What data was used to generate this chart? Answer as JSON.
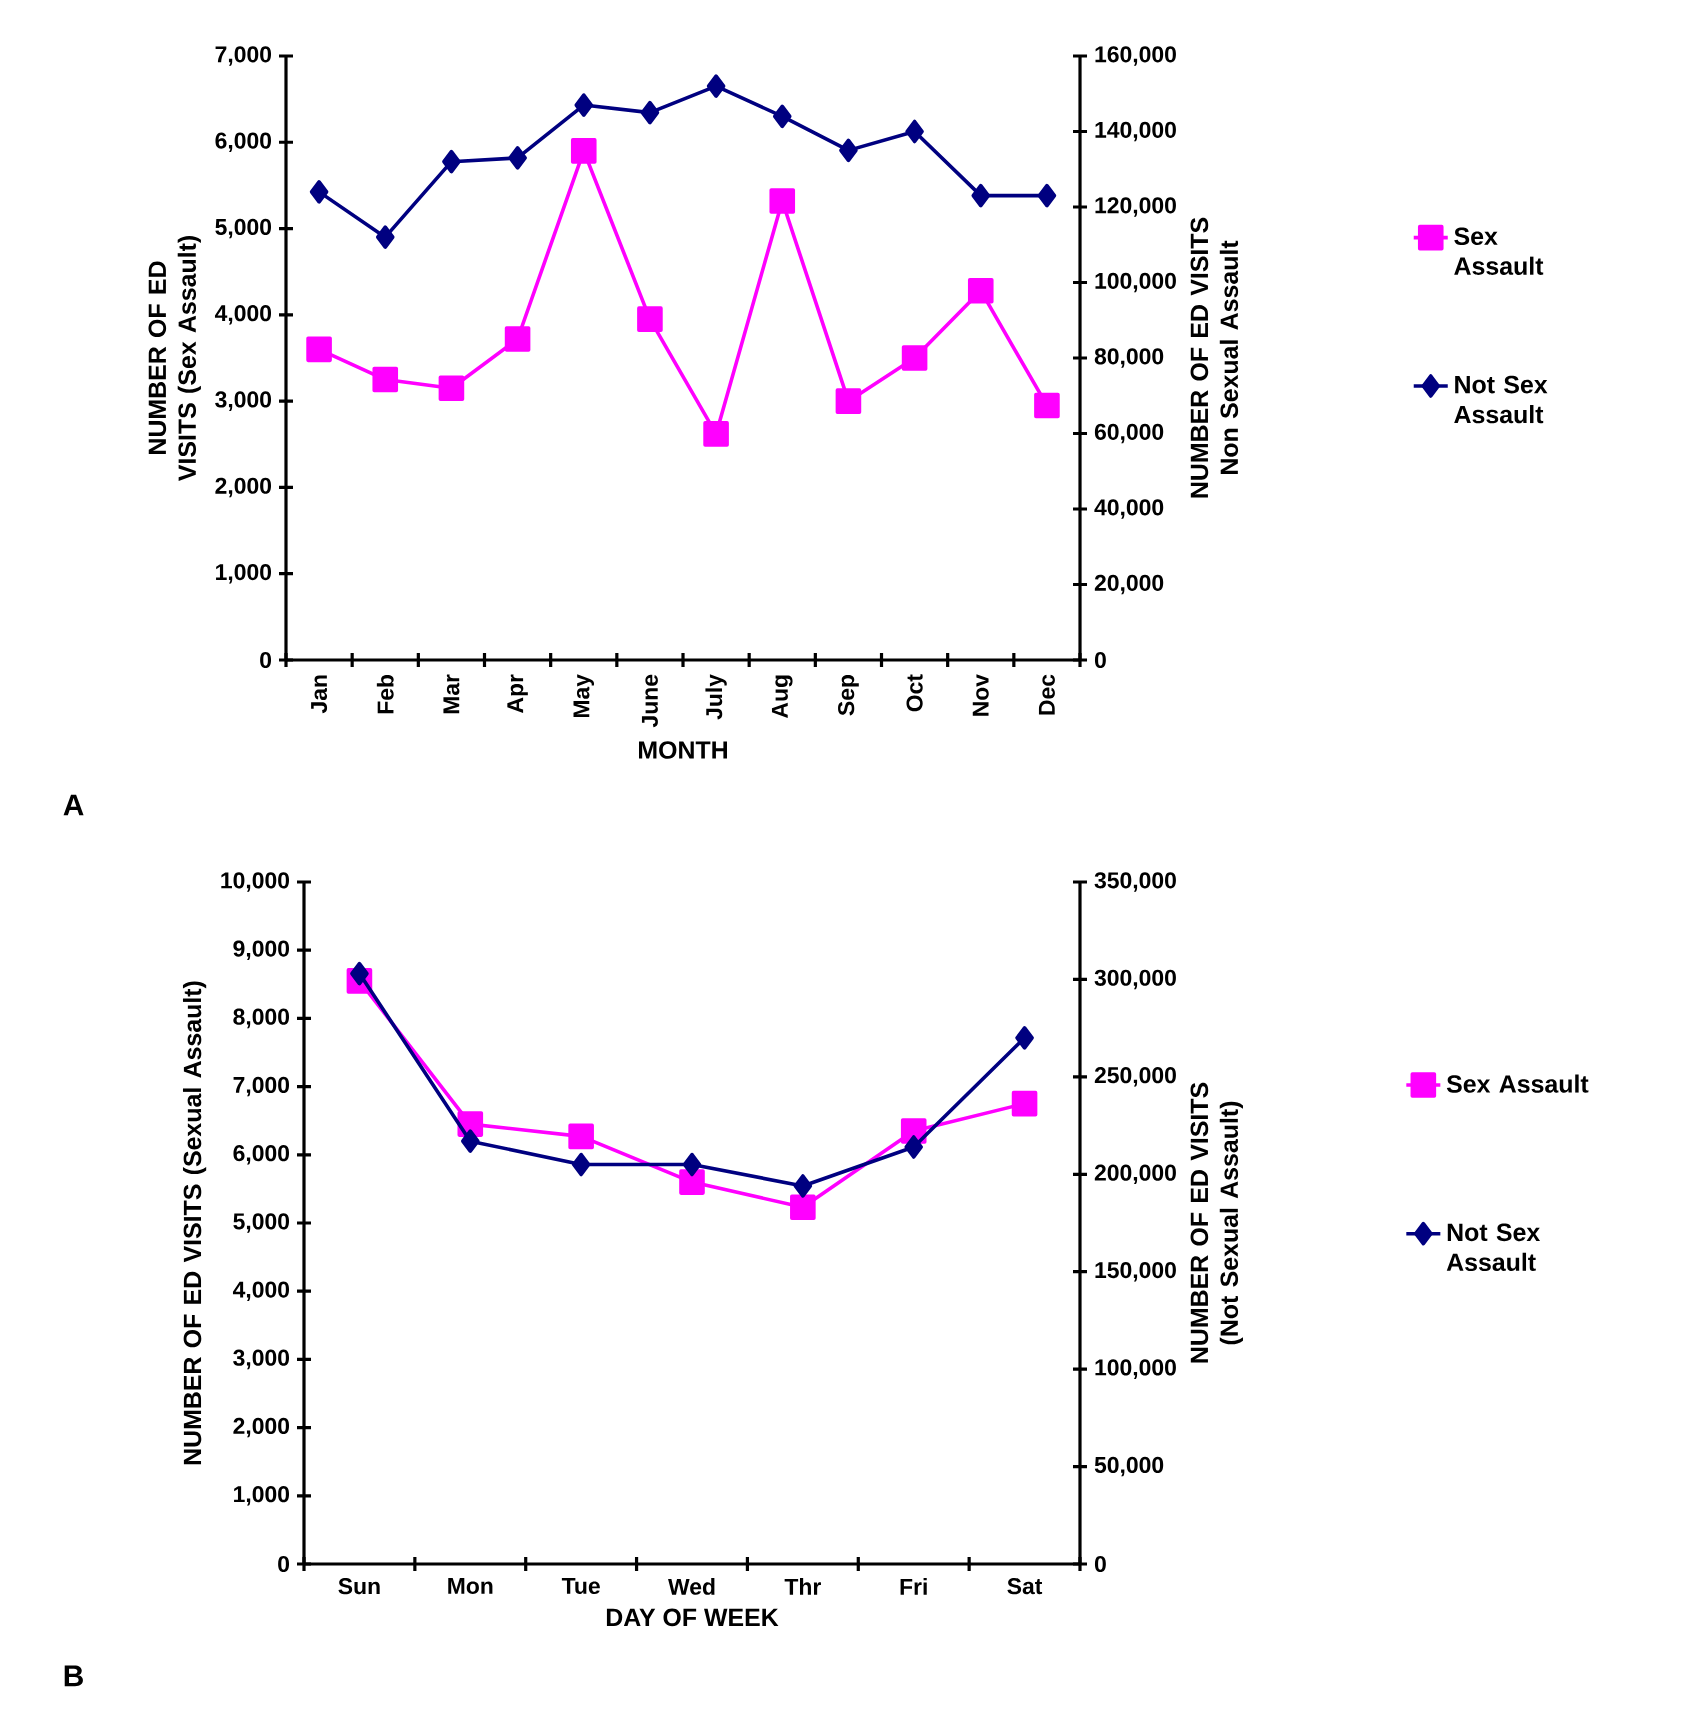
{
  "chart_data": [
    {
      "type": "line",
      "categories": [
        "Jan",
        "Feb",
        "Mar",
        "Apr",
        "May",
        "June",
        "July",
        "Aug",
        "Sep",
        "Oct",
        "Nov",
        "Dec"
      ],
      "xlabel": "MONTH",
      "ylabel": "NUMBER OF ED VISITS (Sex Assault)",
      "y2label": "NUMBER OF ED VISITS Non Sexual Assault",
      "ylim": [
        0,
        7000
      ],
      "yticks": [
        0,
        {
          "value": 1000,
          "label": "1,000"
        },
        {
          "value": 2000,
          "label": "2,000"
        },
        {
          "value": 3000,
          "label": "3,000"
        },
        {
          "value": 4000,
          "label": "4,000"
        },
        {
          "value": 5000,
          "label": "5,000"
        },
        {
          "value": 6000,
          "label": "6,000"
        },
        {
          "value": 7000,
          "label": "7,000"
        }
      ],
      "y2lim": [
        0,
        160000
      ],
      "y2ticks": [
        0,
        {
          "value": 20000,
          "label": "20,000"
        },
        {
          "value": 40000,
          "label": "40,000"
        },
        {
          "value": 60000,
          "label": "60,000"
        },
        {
          "value": 80000,
          "label": "80,000"
        },
        {
          "value": 100000,
          "label": "100,000"
        },
        {
          "value": 120000,
          "label": "120,000"
        },
        {
          "value": 140000,
          "label": "140,000"
        },
        {
          "value": 160000,
          "label": "160,000"
        }
      ],
      "legend": "right",
      "annotations": [
        "A"
      ],
      "series": [
        {
          "name": "Sex Assault",
          "color": "#ff00ff",
          "marker": "square",
          "values": [
            3600,
            3250,
            3150,
            3720,
            5900,
            3950,
            2620,
            5320,
            3000,
            3500,
            4280,
            2950
          ]
        },
        {
          "name": "Not Sex Assault",
          "color": "#000080",
          "marker": "diamond",
          "axis": "y2",
          "values": [
            124000,
            112000,
            132000,
            133000,
            147000,
            145000,
            152000,
            144000,
            135000,
            140000,
            123000,
            123000
          ]
        }
      ]
    },
    {
      "type": "line",
      "categories": [
        "Sun",
        "Mon",
        "Tue",
        "Wed",
        "Thr",
        "Fri",
        "Sat"
      ],
      "xlabel": "DAY OF WEEK",
      "ylabel": "NUMBER OF ED VISITS (Sexual Assault)",
      "y2label": "NUMBER OF ED VISITS (Not Sexual Assault)",
      "ylim": [
        0,
        10000
      ],
      "yticks": [
        0,
        {
          "value": 1000,
          "label": "1,000"
        },
        {
          "value": 2000,
          "label": "2,000"
        },
        {
          "value": 3000,
          "label": "3,000"
        },
        {
          "value": 4000,
          "label": "4,000"
        },
        {
          "value": 5000,
          "label": "5,000"
        },
        {
          "value": 6000,
          "label": "6,000"
        },
        {
          "value": 7000,
          "label": "7,000"
        },
        {
          "value": 8000,
          "label": "8,000"
        },
        {
          "value": 9000,
          "label": "9,000"
        },
        {
          "value": 10000,
          "label": "10,000"
        }
      ],
      "y2lim": [
        0,
        350000
      ],
      "y2ticks": [
        0,
        {
          "value": 50000,
          "label": "50,000"
        },
        {
          "value": 100000,
          "label": "100,000"
        },
        {
          "value": 150000,
          "label": "150,000"
        },
        {
          "value": 200000,
          "label": "200,000"
        },
        {
          "value": 250000,
          "label": "250,000"
        },
        {
          "value": 300000,
          "label": "300,000"
        },
        {
          "value": 350000,
          "label": "350,000"
        }
      ],
      "legend": "right",
      "annotations": [
        "B"
      ],
      "series": [
        {
          "name": "Sex Assault",
          "color": "#ff00ff",
          "marker": "square",
          "values": [
            8550,
            6450,
            6270,
            5600,
            5230,
            6350,
            6750
          ]
        },
        {
          "name": "Not Sex Assault",
          "color": "#000080",
          "marker": "diamond",
          "axis": "y2",
          "values": [
            303000,
            217000,
            205000,
            205000,
            194000,
            214000,
            270000
          ]
        }
      ]
    }
  ]
}
